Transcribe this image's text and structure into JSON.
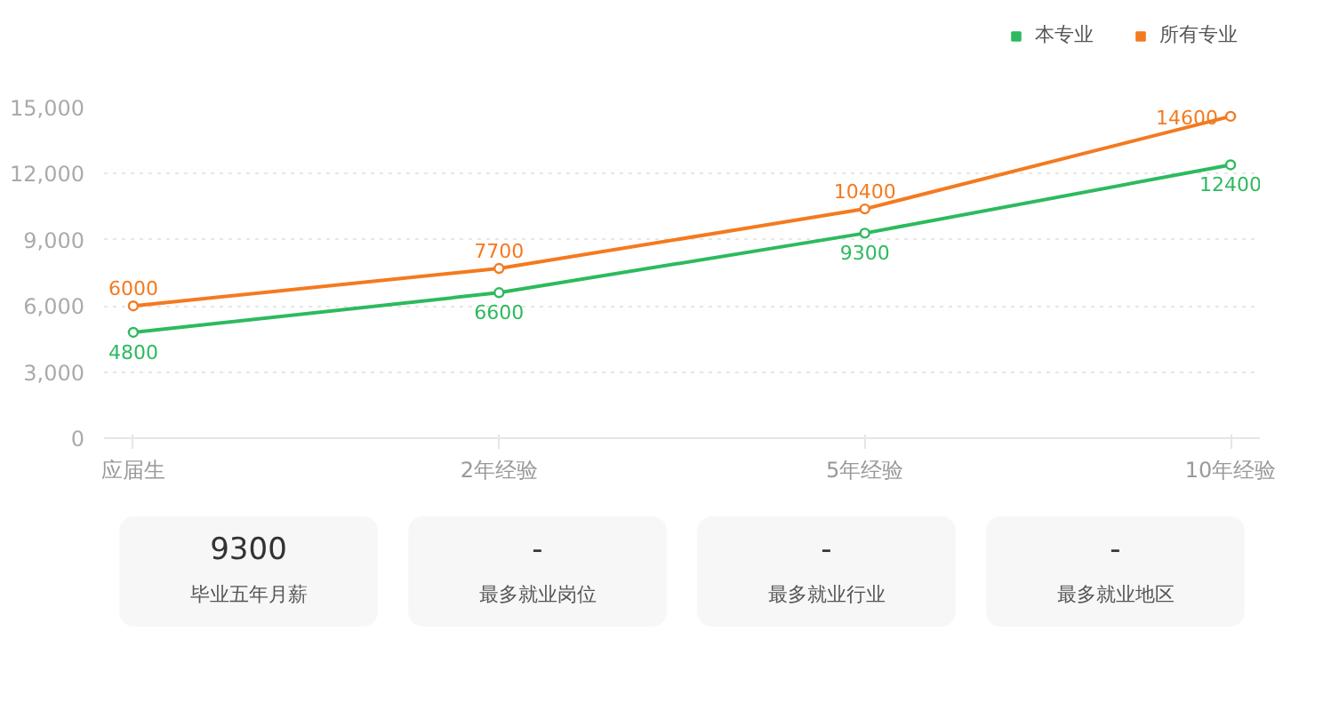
{
  "chart_data": [
    {
      "type": "line",
      "categories": [
        "应届生",
        "2年经验",
        "5年经验",
        "10年经验"
      ],
      "series": [
        {
          "name": "本专业",
          "color": "#2dba5e",
          "values": [
            4800,
            6600,
            9300,
            12400
          ]
        },
        {
          "name": "所有专业",
          "color": "#f47a1f",
          "values": [
            6000,
            7700,
            10400,
            14600
          ]
        }
      ],
      "ylim": [
        0,
        15000
      ],
      "yticks": [
        0,
        {
          "value": 3000,
          "label": "3,000"
        },
        {
          "value": 6000,
          "label": "6,000"
        },
        {
          "value": 9000,
          "label": "9,000"
        },
        {
          "value": 12000,
          "label": "12,000"
        },
        {
          "value": 15000,
          "label": "15,000"
        }
      ],
      "grid": "y",
      "legend": "top right",
      "marker": "circle",
      "line_style": "solid",
      "data_labels": true
    },
    {
      "type": "other",
      "annotations": [
        "9300",
        "毕业五年月薪",
        "-",
        "最多就业岗位",
        "-",
        "最多就业行业",
        "-",
        "最多就业地区"
      ]
    }
  ]
}
